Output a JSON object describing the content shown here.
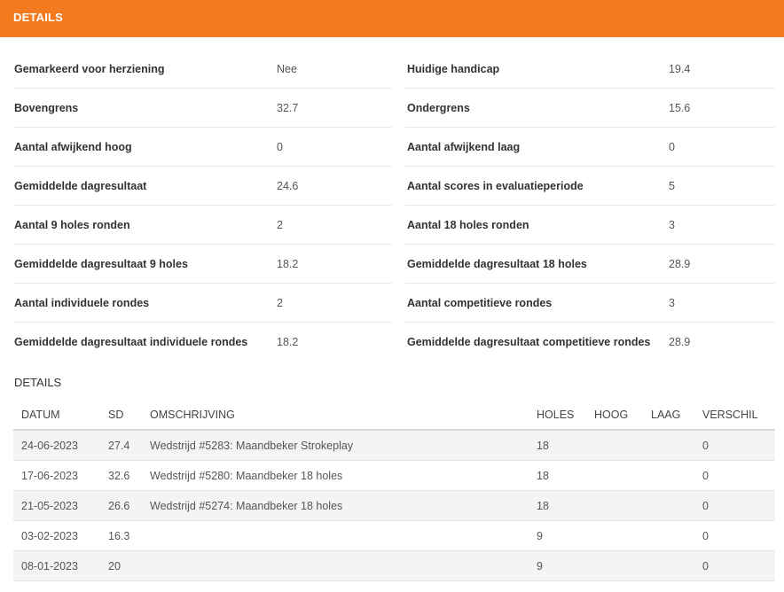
{
  "header": {
    "title": "DETAILS"
  },
  "stats": [
    {
      "left_label": "Gemarkeerd voor herziening",
      "left_value": "Nee",
      "right_label": "Huidige handicap",
      "right_value": "19.4"
    },
    {
      "left_label": "Bovengrens",
      "left_value": "32.7",
      "right_label": "Ondergrens",
      "right_value": "15.6"
    },
    {
      "left_label": "Aantal afwijkend hoog",
      "left_value": "0",
      "right_label": "Aantal afwijkend laag",
      "right_value": "0"
    },
    {
      "left_label": "Gemiddelde dagresultaat",
      "left_value": "24.6",
      "right_label": "Aantal scores in evaluatieperiode",
      "right_value": "5"
    },
    {
      "left_label": "Aantal 9 holes ronden",
      "left_value": "2",
      "right_label": "Aantal 18 holes ronden",
      "right_value": "3"
    },
    {
      "left_label": "Gemiddelde dagresultaat 9 holes",
      "left_value": "18.2",
      "right_label": "Gemiddelde dagresultaat 18 holes",
      "right_value": "28.9"
    },
    {
      "left_label": "Aantal individuele rondes",
      "left_value": "2",
      "right_label": "Aantal competitieve rondes",
      "right_value": "3"
    },
    {
      "left_label": "Gemiddelde dagresultaat individuele rondes",
      "left_value": "18.2",
      "right_label": "Gemiddelde dagresultaat competitieve rondes",
      "right_value": "28.9"
    }
  ],
  "details": {
    "title": "DETAILS",
    "columns": {
      "datum": "DATUM",
      "sd": "SD",
      "omschrijving": "OMSCHRIJVING",
      "holes": "HOLES",
      "hoog": "HOOG",
      "laag": "LAAG",
      "verschil": "VERSCHIL"
    },
    "rows": [
      {
        "datum": "24-06-2023",
        "sd": "27.4",
        "omschrijving": "Wedstrijd #5283: Maandbeker Strokeplay",
        "holes": "18",
        "hoog": "",
        "laag": "",
        "verschil": "0"
      },
      {
        "datum": "17-06-2023",
        "sd": "32.6",
        "omschrijving": "Wedstrijd #5280: Maandbeker 18 holes",
        "holes": "18",
        "hoog": "",
        "laag": "",
        "verschil": "0"
      },
      {
        "datum": "21-05-2023",
        "sd": "26.6",
        "omschrijving": "Wedstrijd #5274: Maandbeker 18 holes",
        "holes": "18",
        "hoog": "",
        "laag": "",
        "verschil": "0"
      },
      {
        "datum": "03-02-2023",
        "sd": "16.3",
        "omschrijving": "",
        "holes": "9",
        "hoog": "",
        "laag": "",
        "verschil": "0"
      },
      {
        "datum": "08-01-2023",
        "sd": "20",
        "omschrijving": "",
        "holes": "9",
        "hoog": "",
        "laag": "",
        "verschil": "0"
      }
    ]
  },
  "colors": {
    "accent": "#f47a1f",
    "row_stripe": "#f4f4f4",
    "divider": "#e6e6e6"
  }
}
